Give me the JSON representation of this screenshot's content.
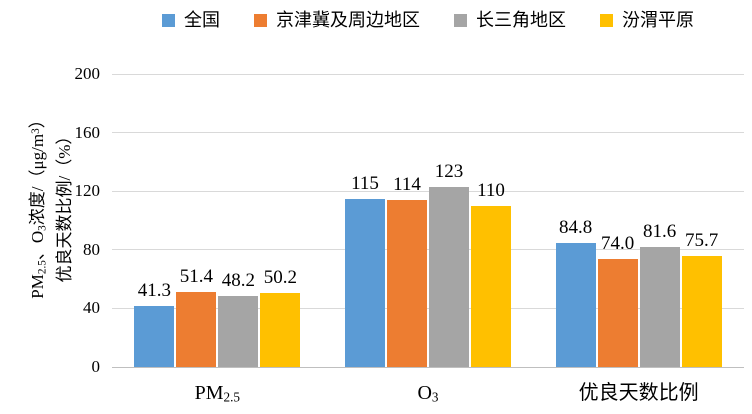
{
  "chart_data": {
    "type": "bar",
    "title": "",
    "legend_position": "top",
    "grid": true,
    "ylim": [
      0,
      200
    ],
    "yticks": [
      0,
      40,
      80,
      120,
      160,
      200
    ],
    "ylabel_lines": [
      [
        {
          "t": "PM"
        },
        {
          "t": "2.5",
          "sub": true
        },
        {
          "t": "、O"
        },
        {
          "t": "3",
          "sub": true
        },
        {
          "t": "浓度/（μg/m"
        },
        {
          "t": "3",
          "sup": true
        },
        {
          "t": "）"
        }
      ],
      [
        {
          "t": "优良天数比例/（%）"
        }
      ]
    ],
    "categories": [
      {
        "name": "PM2.5",
        "segments": [
          {
            "t": "PM"
          },
          {
            "t": "2.5",
            "sub": true
          }
        ]
      },
      {
        "name": "O3",
        "segments": [
          {
            "t": "O"
          },
          {
            "t": "3",
            "sub": true
          }
        ]
      },
      {
        "name": "优良天数比例",
        "segments": [
          {
            "t": "优良天数比例"
          }
        ]
      }
    ],
    "series": [
      {
        "name": "全国",
        "color": "#5B9BD5",
        "values": [
          41.3,
          115,
          84.8
        ],
        "labels": [
          "41.3",
          "115",
          "84.8"
        ]
      },
      {
        "name": "京津冀及周边地区",
        "color": "#ED7D31",
        "values": [
          51.4,
          114,
          74.0
        ],
        "labels": [
          "51.4",
          "114",
          "74.0"
        ]
      },
      {
        "name": "长三角地区",
        "color": "#A5A5A5",
        "values": [
          48.2,
          123,
          81.6
        ],
        "labels": [
          "48.2",
          "123",
          "81.6"
        ]
      },
      {
        "name": "汾渭平原",
        "color": "#FFC000",
        "values": [
          50.2,
          110,
          75.7
        ],
        "labels": [
          "50.2",
          "110",
          "75.7"
        ]
      }
    ],
    "colors": {
      "gridline": "#D9D9D9",
      "axis_line": "#BFBFBF",
      "text": "#000000",
      "background": "#FFFFFF"
    }
  }
}
